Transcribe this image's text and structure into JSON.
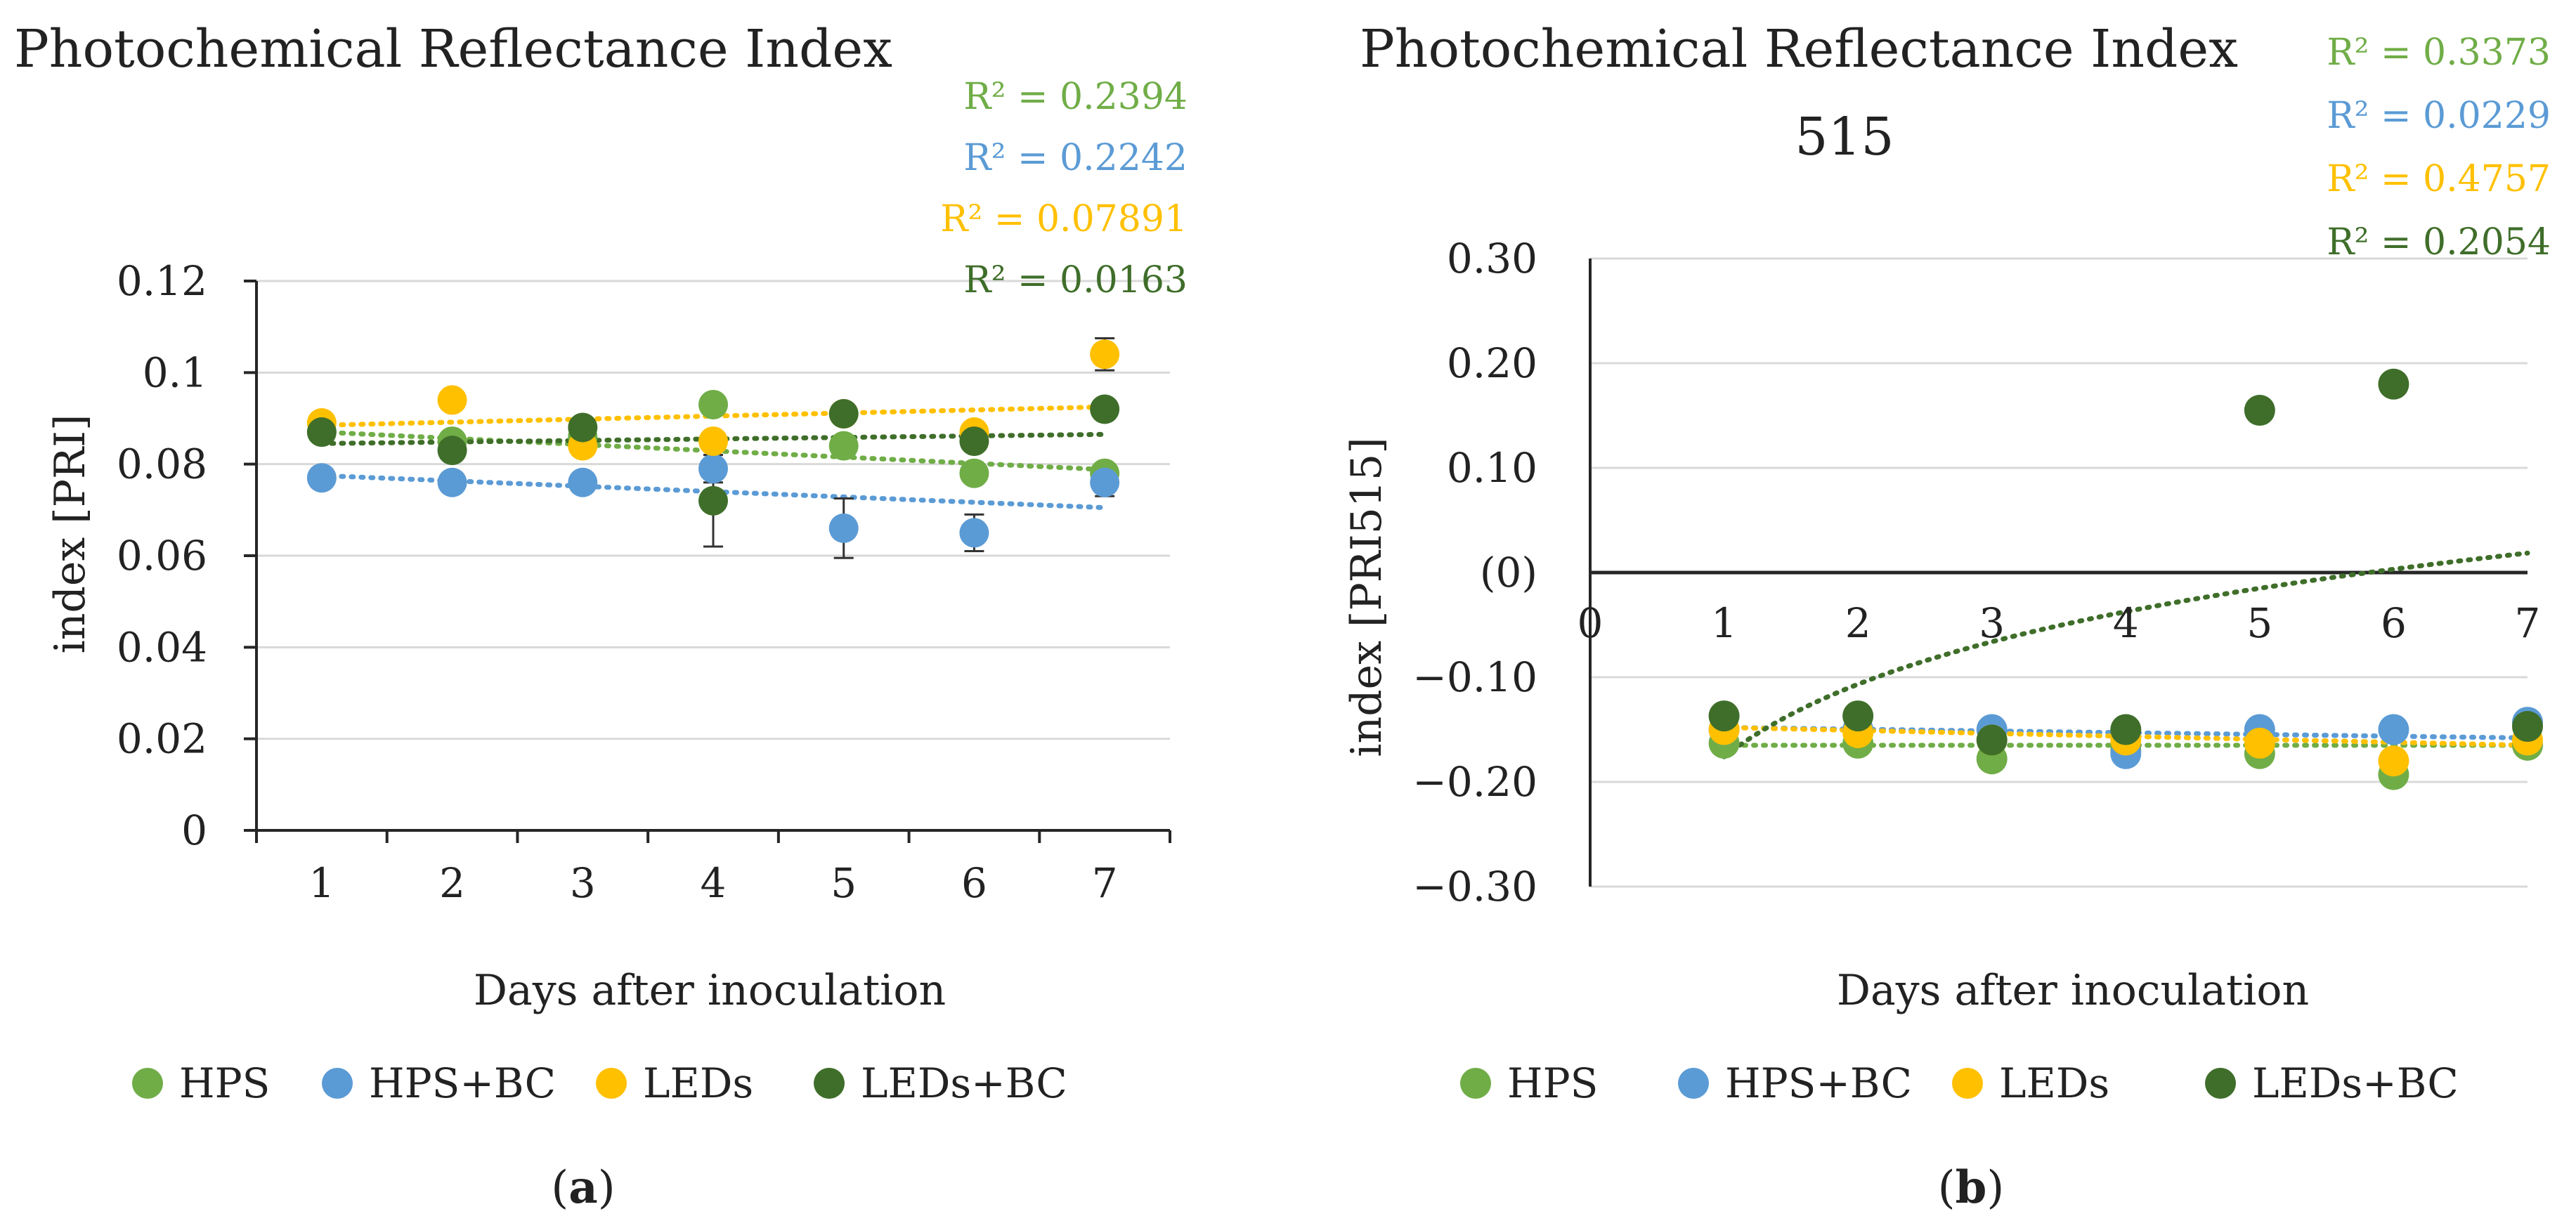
{
  "colors": {
    "HPS": "#70ad47",
    "HPS+BC": "#5b9bd5",
    "LEDs": "#ffc000",
    "LEDs+BC": "#3f6e2a",
    "grid": "#d9d9d9",
    "axis": "#262626",
    "errorbar": "#333333"
  },
  "chart_data": [
    {
      "id": "a",
      "type": "scatter",
      "title": "Photochemical Reflectance Index",
      "xlabel": "Days after inoculation",
      "ylabel": "index [PRI]",
      "x": [
        1,
        2,
        3,
        4,
        5,
        6,
        7
      ],
      "xlim": [
        0.5,
        7.5
      ],
      "ylim": [
        0,
        0.12
      ],
      "yticks": [
        0,
        0.02,
        0.04,
        0.06,
        0.08,
        0.1,
        0.12
      ],
      "ytick_labels": [
        "0",
        "0.02",
        "0.04",
        "0.06",
        "0.08",
        "0.1",
        "0.12"
      ],
      "xtick_labels": [
        "1",
        "2",
        "3",
        "4",
        "5",
        "6",
        "7"
      ],
      "grid": true,
      "legend_position": "bottom",
      "series": [
        {
          "name": "HPS",
          "values": [
            0.087,
            0.085,
            0.086,
            0.093,
            0.084,
            0.078,
            0.078
          ],
          "errors": [
            0.002,
            0.002,
            0.002,
            0.002,
            0.002,
            0.002,
            0.002
          ],
          "trend": [
            0.087,
            0.0788
          ],
          "r2": "R² = 0.2394"
        },
        {
          "name": "HPS+BC",
          "values": [
            0.077,
            0.076,
            0.076,
            0.079,
            0.066,
            0.065,
            0.076
          ],
          "errors": [
            0.002,
            0.002,
            0.002,
            0.003,
            0.0065,
            0.004,
            0.003
          ],
          "trend": [
            0.0775,
            0.0705
          ],
          "r2": "R² = 0.2242"
        },
        {
          "name": "LEDs",
          "values": [
            0.089,
            0.094,
            0.084,
            0.085,
            0.091,
            0.087,
            0.104
          ],
          "errors": [
            0.002,
            0.002,
            0.002,
            0.002,
            0.002,
            0.002,
            0.0035
          ],
          "trend": [
            0.0885,
            0.0925
          ],
          "r2": "R² = 0.07891"
        },
        {
          "name": "LEDs+BC",
          "values": [
            0.087,
            0.083,
            0.088,
            0.072,
            0.091,
            0.085,
            0.092
          ],
          "errors": [
            0.002,
            0.002,
            0.002,
            0.01,
            0.002,
            0.002,
            0.002
          ],
          "trend": [
            0.0845,
            0.0865
          ],
          "r2": "R² = 0.0163"
        }
      ],
      "caption_letter": "a"
    },
    {
      "id": "b",
      "type": "scatter",
      "title_lines": [
        "Photochemical Reflectance Index",
        "515"
      ],
      "xlabel": "Days after inoculation",
      "ylabel": "index [PRI515]",
      "x": [
        1,
        2,
        3,
        4,
        5,
        6,
        7
      ],
      "xlim": [
        0,
        7
      ],
      "ylim": [
        -0.3,
        0.3
      ],
      "yticks": [
        -0.3,
        -0.2,
        -0.1,
        0,
        0.1,
        0.2,
        0.3
      ],
      "ytick_labels": [
        "−0.30",
        "−0.20",
        "−0.10",
        "(0)",
        "0.10",
        "0.20",
        "0.30"
      ],
      "xtick_labels": [
        "0",
        "1",
        "2",
        "3",
        "4",
        "5",
        "6",
        "7"
      ],
      "grid": true,
      "legend_position": "bottom",
      "series": [
        {
          "name": "HPS",
          "values": [
            -0.163,
            -0.163,
            -0.178,
            -0.17,
            -0.173,
            -0.193,
            -0.165
          ],
          "trend": [
            -0.165,
            -0.165
          ],
          "r2": "R² = 0.3373"
        },
        {
          "name": "HPS+BC",
          "values": [
            -0.15,
            -0.15,
            -0.15,
            -0.173,
            -0.15,
            -0.15,
            -0.143
          ],
          "trend": [
            -0.148,
            -0.158
          ],
          "r2": "R² = 0.0229"
        },
        {
          "name": "LEDs",
          "values": [
            -0.15,
            -0.153,
            -0.16,
            -0.16,
            -0.163,
            -0.18,
            -0.16
          ],
          "trend": [
            -0.148,
            -0.165
          ],
          "r2": "R² = 0.4757"
        },
        {
          "name": "LEDs+BC",
          "values": [
            -0.137,
            -0.137,
            -0.16,
            -0.15,
            0.155,
            0.18,
            -0.147
          ],
          "trend_log": {
            "a": -0.176,
            "b": 0.1
          },
          "r2": "R² = 0.2054"
        }
      ],
      "caption_letter": "b"
    }
  ]
}
